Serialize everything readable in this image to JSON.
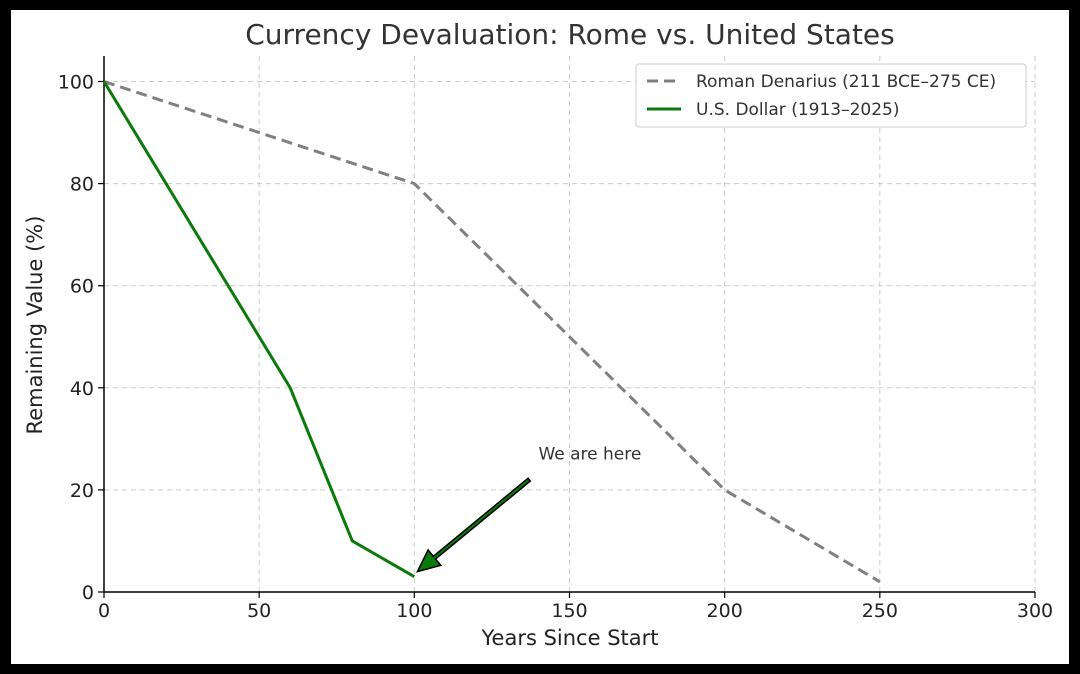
{
  "chart_data": {
    "type": "line",
    "title": "Currency Devaluation: Rome vs. United States",
    "xlabel": "Years Since Start",
    "ylabel": "Remaining Value (%)",
    "xlim": [
      0,
      300
    ],
    "ylim": [
      0,
      105
    ],
    "xticks": [
      "0",
      "50",
      "100",
      "150",
      "200",
      "250",
      "300"
    ],
    "yticks": [
      "0",
      "20",
      "40",
      "60",
      "80",
      "100"
    ],
    "grid": true,
    "legend_position": "top-right",
    "series": [
      {
        "name": "Roman Denarius (211 BCE–275 CE)",
        "color": "#808080",
        "style": "dashed",
        "x": [
          0,
          100,
          200,
          250
        ],
        "y": [
          100,
          80,
          20,
          2
        ]
      },
      {
        "name": "U.S. Dollar (1913–2025)",
        "color": "#0a7a0a",
        "style": "solid",
        "x": [
          0,
          60,
          80,
          100
        ],
        "y": [
          100,
          40,
          10,
          3
        ]
      }
    ],
    "annotations": [
      {
        "text": "We are here",
        "text_x": 140,
        "text_y": 26,
        "arrow_from_x": 137,
        "arrow_from_y": 22,
        "arrow_to_x": 101,
        "arrow_to_y": 4,
        "arrow_color": "#0a7a0a"
      }
    ]
  }
}
